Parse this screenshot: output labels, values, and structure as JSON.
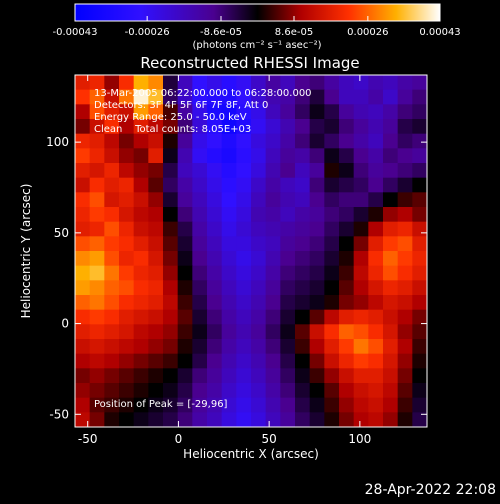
{
  "chart_data": {
    "type": "heatmap",
    "title": "Reconstructed RHESSI Image",
    "xlabel": "Heliocentric X (arcsec)",
    "ylabel": "Heliocentric Y (arcsec)",
    "xlim": [
      -57,
      137
    ],
    "ylim": [
      -57,
      137
    ],
    "x_ticks": [
      -50,
      0,
      50,
      100
    ],
    "y_ticks": [
      -50,
      0,
      50,
      100
    ],
    "colorbar": {
      "range": [
        -0.00043,
        0.00043
      ],
      "tick_values": [
        -0.00043,
        -0.00026,
        -8.6e-05,
        8.6e-05,
        0.00026,
        0.00043
      ],
      "tick_labels": [
        "-0.00043",
        "-0.00026",
        "-8.6e-05",
        "8.6e-05",
        "0.00026",
        "0.00043"
      ],
      "unit_label": "(photons cm⁻² s⁻¹ asec⁻²)"
    },
    "annotations": [
      "13-Mar-2005 06:22:00.000 to 06:28:00.000",
      "Detectors: 3F 4F 5F 6F 7F 8F, Att 0",
      "Energy Range: 25.0 - 50.0 keV",
      "Clean    Total counts: 8.05E+03"
    ],
    "peak_label": "Position of Peak = [-29,96]",
    "peak_position": [
      -29,
      96
    ],
    "intensity_grid": {
      "nx": 24,
      "ny": 24,
      "rows_top_to_bottom": [
        [
          0.7,
          0.72,
          0.6,
          0.74,
          0.88,
          0.84,
          0.45,
          0.3,
          0.18,
          0.22,
          0.15,
          0.2,
          0.28,
          0.35,
          0.3,
          0.38,
          0.4,
          0.35,
          0.3,
          0.28,
          0.32,
          0.3,
          0.34,
          0.36
        ],
        [
          0.75,
          0.8,
          0.66,
          0.82,
          0.98,
          0.9,
          0.42,
          0.28,
          0.16,
          0.14,
          0.12,
          0.18,
          0.26,
          0.32,
          0.34,
          0.4,
          0.45,
          0.38,
          0.3,
          0.3,
          0.34,
          0.28,
          0.36,
          0.4
        ],
        [
          0.62,
          0.78,
          0.7,
          0.66,
          0.86,
          0.8,
          0.55,
          0.35,
          0.22,
          0.1,
          0.08,
          0.15,
          0.22,
          0.3,
          0.36,
          0.42,
          0.48,
          0.44,
          0.36,
          0.32,
          0.3,
          0.34,
          0.4,
          0.42
        ],
        [
          0.58,
          0.66,
          0.74,
          0.62,
          0.7,
          0.64,
          0.58,
          0.4,
          0.25,
          0.15,
          0.06,
          0.12,
          0.2,
          0.26,
          0.32,
          0.38,
          0.44,
          0.46,
          0.4,
          0.36,
          0.32,
          0.36,
          0.44,
          0.46
        ],
        [
          0.72,
          0.7,
          0.64,
          0.58,
          0.62,
          0.66,
          0.52,
          0.36,
          0.22,
          0.18,
          0.12,
          0.18,
          0.24,
          0.28,
          0.34,
          0.4,
          0.46,
          0.42,
          0.38,
          0.34,
          0.3,
          0.38,
          0.42,
          0.4
        ],
        [
          0.76,
          0.72,
          0.66,
          0.6,
          0.58,
          0.7,
          0.48,
          0.32,
          0.2,
          0.14,
          0.1,
          0.16,
          0.22,
          0.3,
          0.36,
          0.34,
          0.4,
          0.48,
          0.44,
          0.38,
          0.34,
          0.4,
          0.38,
          0.36
        ],
        [
          0.7,
          0.68,
          0.72,
          0.64,
          0.6,
          0.58,
          0.44,
          0.3,
          0.26,
          0.2,
          0.14,
          0.18,
          0.24,
          0.32,
          0.38,
          0.3,
          0.36,
          0.52,
          0.48,
          0.4,
          0.36,
          0.38,
          0.4,
          0.42
        ],
        [
          0.66,
          0.74,
          0.7,
          0.72,
          0.62,
          0.56,
          0.42,
          0.34,
          0.28,
          0.22,
          0.16,
          0.2,
          0.28,
          0.34,
          0.3,
          0.28,
          0.4,
          0.46,
          0.44,
          0.42,
          0.38,
          0.42,
          0.46,
          0.5
        ],
        [
          0.74,
          0.78,
          0.68,
          0.7,
          0.66,
          0.6,
          0.46,
          0.36,
          0.3,
          0.24,
          0.18,
          0.22,
          0.3,
          0.36,
          0.32,
          0.3,
          0.38,
          0.42,
          0.4,
          0.4,
          0.44,
          0.5,
          0.54,
          0.56
        ],
        [
          0.72,
          0.76,
          0.74,
          0.68,
          0.64,
          0.62,
          0.5,
          0.4,
          0.32,
          0.26,
          0.2,
          0.24,
          0.32,
          0.34,
          0.3,
          0.34,
          0.36,
          0.4,
          0.42,
          0.46,
          0.52,
          0.6,
          0.62,
          0.58
        ],
        [
          0.7,
          0.72,
          0.78,
          0.72,
          0.66,
          0.64,
          0.54,
          0.44,
          0.34,
          0.28,
          0.22,
          0.26,
          0.3,
          0.32,
          0.34,
          0.36,
          0.38,
          0.42,
          0.46,
          0.52,
          0.62,
          0.7,
          0.72,
          0.66
        ],
        [
          0.78,
          0.8,
          0.76,
          0.74,
          0.7,
          0.66,
          0.56,
          0.46,
          0.36,
          0.3,
          0.24,
          0.24,
          0.28,
          0.3,
          0.36,
          0.38,
          0.4,
          0.44,
          0.5,
          0.58,
          0.7,
          0.76,
          0.78,
          0.7
        ],
        [
          0.84,
          0.86,
          0.78,
          0.72,
          0.74,
          0.68,
          0.58,
          0.48,
          0.38,
          0.32,
          0.26,
          0.22,
          0.26,
          0.32,
          0.38,
          0.4,
          0.42,
          0.46,
          0.52,
          0.62,
          0.74,
          0.8,
          0.76,
          0.72
        ],
        [
          0.88,
          0.9,
          0.82,
          0.76,
          0.72,
          0.7,
          0.6,
          0.5,
          0.4,
          0.34,
          0.28,
          0.24,
          0.28,
          0.34,
          0.4,
          0.42,
          0.44,
          0.48,
          0.54,
          0.64,
          0.72,
          0.78,
          0.74,
          0.7
        ],
        [
          0.86,
          0.84,
          0.8,
          0.78,
          0.74,
          0.72,
          0.62,
          0.52,
          0.42,
          0.36,
          0.3,
          0.26,
          0.3,
          0.36,
          0.42,
          0.44,
          0.46,
          0.5,
          0.56,
          0.62,
          0.68,
          0.72,
          0.7,
          0.66
        ],
        [
          0.8,
          0.82,
          0.78,
          0.74,
          0.72,
          0.7,
          0.64,
          0.54,
          0.44,
          0.38,
          0.32,
          0.28,
          0.32,
          0.38,
          0.44,
          0.46,
          0.48,
          0.52,
          0.58,
          0.6,
          0.64,
          0.68,
          0.66,
          0.62
        ],
        [
          0.74,
          0.76,
          0.74,
          0.7,
          0.68,
          0.66,
          0.62,
          0.56,
          0.46,
          0.4,
          0.34,
          0.3,
          0.34,
          0.4,
          0.46,
          0.5,
          0.56,
          0.64,
          0.7,
          0.72,
          0.7,
          0.66,
          0.62,
          0.58
        ],
        [
          0.7,
          0.72,
          0.7,
          0.68,
          0.64,
          0.62,
          0.6,
          0.54,
          0.48,
          0.42,
          0.36,
          0.32,
          0.36,
          0.42,
          0.48,
          0.56,
          0.66,
          0.74,
          0.8,
          0.78,
          0.74,
          0.68,
          0.6,
          0.56
        ],
        [
          0.66,
          0.68,
          0.66,
          0.64,
          0.62,
          0.6,
          0.58,
          0.52,
          0.46,
          0.4,
          0.34,
          0.3,
          0.34,
          0.4,
          0.46,
          0.54,
          0.62,
          0.7,
          0.76,
          0.82,
          0.78,
          0.7,
          0.62,
          0.54
        ],
        [
          0.62,
          0.64,
          0.62,
          0.6,
          0.58,
          0.56,
          0.54,
          0.5,
          0.44,
          0.38,
          0.32,
          0.28,
          0.32,
          0.38,
          0.44,
          0.5,
          0.58,
          0.66,
          0.72,
          0.76,
          0.74,
          0.68,
          0.6,
          0.52
        ],
        [
          0.58,
          0.6,
          0.58,
          0.56,
          0.54,
          0.52,
          0.5,
          0.46,
          0.4,
          0.36,
          0.3,
          0.26,
          0.3,
          0.36,
          0.42,
          0.48,
          0.54,
          0.6,
          0.66,
          0.7,
          0.7,
          0.66,
          0.58,
          0.5
        ],
        [
          0.6,
          0.58,
          0.56,
          0.54,
          0.52,
          0.5,
          0.48,
          0.44,
          0.38,
          0.34,
          0.28,
          0.24,
          0.28,
          0.34,
          0.4,
          0.46,
          0.5,
          0.56,
          0.62,
          0.66,
          0.68,
          0.64,
          0.56,
          0.48
        ],
        [
          0.62,
          0.56,
          0.54,
          0.52,
          0.5,
          0.48,
          0.46,
          0.42,
          0.36,
          0.32,
          0.26,
          0.22,
          0.26,
          0.32,
          0.38,
          0.44,
          0.48,
          0.54,
          0.6,
          0.64,
          0.66,
          0.62,
          0.54,
          0.46
        ],
        [
          0.64,
          0.58,
          0.52,
          0.5,
          0.48,
          0.46,
          0.44,
          0.4,
          0.34,
          0.3,
          0.24,
          0.2,
          0.24,
          0.3,
          0.36,
          0.42,
          0.46,
          0.52,
          0.58,
          0.62,
          0.64,
          0.6,
          0.52,
          0.44
        ]
      ]
    }
  },
  "footer": {
    "timestamp": "28-Apr-2022 22:08"
  }
}
